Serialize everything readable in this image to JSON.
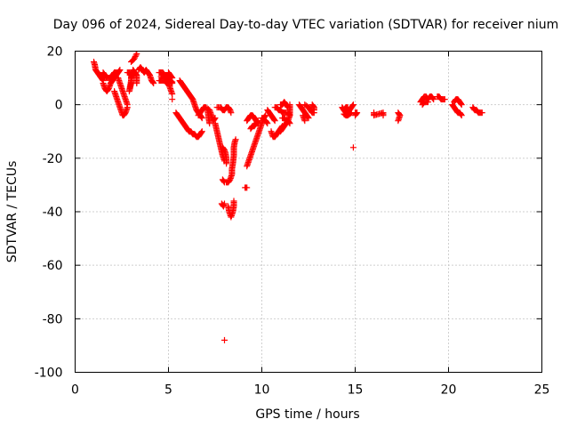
{
  "chart_data": {
    "type": "scatter",
    "title": "Day 096 of 2024, Sidereal Day-to-day VTEC variation (SDTVAR) for receiver nium",
    "xlabel": "GPS time / hours",
    "ylabel": "SDTVAR / TECUs",
    "xlim": [
      0,
      25
    ],
    "ylim": [
      -100,
      20
    ],
    "xticks": [
      0,
      5,
      10,
      15,
      20,
      25
    ],
    "yticks": [
      -100,
      -80,
      -60,
      -40,
      -20,
      0,
      20
    ],
    "xtick_labels": [
      "0",
      "5",
      "10",
      "15",
      "20",
      "25"
    ],
    "ytick_labels": [
      "-100",
      "-80",
      "-60",
      "-40",
      "-20",
      "0",
      "20"
    ],
    "grid": true,
    "marker": "plus",
    "color": "#ff0000",
    "segments": [
      [
        [
          1.0,
          16
        ],
        [
          1.05,
          15
        ],
        [
          1.1,
          13
        ],
        [
          1.2,
          12
        ],
        [
          1.3,
          11
        ],
        [
          1.4,
          10
        ],
        [
          1.5,
          9
        ]
      ],
      [
        [
          1.5,
          12
        ],
        [
          1.6,
          11
        ],
        [
          1.7,
          10
        ],
        [
          1.8,
          10
        ],
        [
          1.9,
          10
        ],
        [
          2.0,
          11
        ],
        [
          2.1,
          12
        ],
        [
          2.2,
          12
        ]
      ],
      [
        [
          1.5,
          8
        ],
        [
          1.6,
          6
        ],
        [
          1.7,
          5
        ],
        [
          1.8,
          6
        ],
        [
          1.9,
          8
        ],
        [
          2.0,
          9
        ],
        [
          2.1,
          10
        ],
        [
          2.2,
          11
        ],
        [
          2.3,
          12
        ],
        [
          2.4,
          13
        ]
      ],
      [
        [
          2.1,
          5
        ],
        [
          2.2,
          3
        ],
        [
          2.3,
          1
        ],
        [
          2.4,
          -1
        ],
        [
          2.5,
          -3
        ],
        [
          2.55,
          -4
        ],
        [
          2.6,
          -4
        ],
        [
          2.7,
          -3
        ],
        [
          2.8,
          -1
        ]
      ],
      [
        [
          2.3,
          10
        ],
        [
          2.4,
          8
        ],
        [
          2.5,
          6
        ],
        [
          2.6,
          4
        ],
        [
          2.7,
          2
        ],
        [
          2.8,
          0
        ]
      ],
      [
        [
          2.8,
          12
        ],
        [
          2.9,
          12
        ],
        [
          3.0,
          11
        ],
        [
          3.0,
          8
        ],
        [
          2.9,
          5
        ],
        [
          3.1,
          13
        ],
        [
          3.2,
          12
        ],
        [
          3.3,
          11
        ],
        [
          3.3,
          8
        ]
      ],
      [
        [
          3.0,
          16
        ],
        [
          3.15,
          17
        ],
        [
          3.3,
          19
        ]
      ],
      [
        [
          3.4,
          13
        ],
        [
          3.5,
          14
        ],
        [
          3.6,
          13
        ],
        [
          3.7,
          12
        ],
        [
          3.8,
          13
        ],
        [
          3.9,
          12
        ],
        [
          4.0,
          11
        ],
        [
          4.1,
          9
        ],
        [
          4.2,
          8
        ]
      ],
      [
        [
          4.5,
          12
        ],
        [
          4.6,
          12
        ],
        [
          4.7,
          12
        ],
        [
          4.8,
          11
        ],
        [
          4.9,
          11
        ],
        [
          5.0,
          10
        ],
        [
          5.1,
          9
        ],
        [
          5.2,
          8
        ]
      ],
      [
        [
          4.5,
          9
        ],
        [
          4.6,
          9
        ],
        [
          4.7,
          9
        ],
        [
          4.8,
          9
        ],
        [
          4.9,
          8
        ],
        [
          5.0,
          8
        ],
        [
          5.1,
          6
        ],
        [
          5.2,
          4
        ]
      ],
      [
        [
          4.6,
          10.5
        ],
        [
          4.7,
          10.5
        ],
        [
          4.8,
          10
        ],
        [
          4.9,
          10
        ],
        [
          5.0,
          9.5
        ],
        [
          5.1,
          9
        ],
        [
          5.2,
          8.5
        ]
      ],
      [
        [
          5.0,
          12
        ],
        [
          5.1,
          11
        ],
        [
          5.2,
          10
        ]
      ],
      [
        [
          5.2,
          2
        ]
      ],
      [
        [
          5.4,
          -3
        ],
        [
          5.5,
          -4
        ],
        [
          5.6,
          -5
        ],
        [
          5.7,
          -6
        ],
        [
          5.8,
          -7
        ],
        [
          5.9,
          -8
        ],
        [
          6.0,
          -9
        ],
        [
          6.1,
          -10
        ],
        [
          6.2,
          -10
        ],
        [
          6.3,
          -11
        ],
        [
          6.4,
          -11
        ],
        [
          6.5,
          -12
        ],
        [
          6.6,
          -12
        ],
        [
          6.7,
          -11
        ],
        [
          6.8,
          -10
        ]
      ],
      [
        [
          5.6,
          9
        ],
        [
          5.7,
          8
        ],
        [
          5.8,
          7
        ],
        [
          5.9,
          6
        ],
        [
          6.0,
          5
        ],
        [
          6.1,
          4
        ],
        [
          6.2,
          3
        ],
        [
          6.3,
          2
        ],
        [
          6.4,
          0
        ],
        [
          6.5,
          -2
        ],
        [
          6.6,
          -3
        ],
        [
          6.7,
          -4
        ],
        [
          6.8,
          -5
        ]
      ],
      [
        [
          6.6,
          -4
        ],
        [
          6.8,
          -2
        ],
        [
          6.9,
          -1
        ],
        [
          7.0,
          -1
        ],
        [
          7.2,
          -2
        ],
        [
          7.3,
          -4
        ],
        [
          7.4,
          -6
        ],
        [
          7.5,
          -5
        ]
      ],
      [
        [
          7.1,
          -2
        ],
        [
          7.15,
          -5
        ],
        [
          7.2,
          -7
        ]
      ],
      [
        [
          7.5,
          -7
        ],
        [
          7.6,
          -10
        ],
        [
          7.7,
          -13
        ],
        [
          7.8,
          -16
        ],
        [
          7.9,
          -19
        ],
        [
          8.0,
          -21
        ]
      ],
      [
        [
          7.6,
          -1
        ],
        [
          7.8,
          -1
        ],
        [
          7.9,
          -2
        ],
        [
          8.0,
          -2
        ]
      ],
      [
        [
          8.0,
          -2
        ],
        [
          8.1,
          -1
        ],
        [
          8.2,
          -1
        ],
        [
          8.3,
          -2
        ],
        [
          8.35,
          -3
        ]
      ],
      [
        [
          7.9,
          -16
        ],
        [
          8.0,
          -17
        ],
        [
          8.05,
          -18
        ],
        [
          8.1,
          -20
        ],
        [
          8.1,
          -22
        ]
      ],
      [
        [
          8.1,
          -29
        ],
        [
          8.2,
          -29
        ],
        [
          8.3,
          -28
        ],
        [
          8.4,
          -26
        ],
        [
          8.4,
          -24
        ],
        [
          8.45,
          -22
        ],
        [
          8.5,
          -19
        ],
        [
          8.5,
          -16
        ],
        [
          8.55,
          -14
        ],
        [
          8.6,
          -13
        ]
      ],
      [
        [
          7.9,
          -28
        ],
        [
          8.0,
          -29
        ]
      ],
      [
        [
          7.85,
          -37
        ],
        [
          7.95,
          -38
        ],
        [
          8.0,
          -37
        ]
      ],
      [
        [
          8.2,
          -38
        ],
        [
          8.25,
          -40
        ],
        [
          8.3,
          -41
        ],
        [
          8.35,
          -42
        ],
        [
          8.4,
          -41
        ],
        [
          8.45,
          -40
        ],
        [
          8.5,
          -38
        ],
        [
          8.5,
          -36
        ]
      ],
      [
        [
          8.0,
          -88
        ]
      ],
      [
        [
          9.1,
          -31
        ],
        [
          9.2,
          -31
        ]
      ],
      [
        [
          9.2,
          -6
        ],
        [
          9.3,
          -5
        ],
        [
          9.4,
          -4
        ],
        [
          9.5,
          -4
        ],
        [
          9.6,
          -5
        ],
        [
          9.7,
          -6
        ],
        [
          9.8,
          -7
        ]
      ],
      [
        [
          9.2,
          -23
        ],
        [
          9.3,
          -21
        ],
        [
          9.4,
          -19
        ],
        [
          9.5,
          -17
        ],
        [
          9.6,
          -15
        ],
        [
          9.7,
          -13
        ],
        [
          9.8,
          -11
        ],
        [
          9.9,
          -9
        ],
        [
          10.0,
          -7
        ],
        [
          10.1,
          -5
        ],
        [
          10.2,
          -4
        ]
      ],
      [
        [
          9.4,
          -9
        ],
        [
          9.5,
          -8
        ],
        [
          9.6,
          -8
        ],
        [
          9.7,
          -7
        ],
        [
          9.8,
          -6
        ]
      ],
      [
        [
          10.0,
          -5
        ],
        [
          10.2,
          -6
        ],
        [
          10.3,
          -7
        ]
      ],
      [
        [
          10.3,
          -2
        ],
        [
          10.4,
          -3
        ],
        [
          10.5,
          -4
        ],
        [
          10.6,
          -5
        ],
        [
          10.7,
          -6
        ]
      ],
      [
        [
          10.5,
          -10
        ],
        [
          10.6,
          -12
        ],
        [
          10.7,
          -12
        ],
        [
          10.8,
          -11
        ],
        [
          10.9,
          -10
        ],
        [
          11.0,
          -9
        ],
        [
          11.1,
          -8
        ]
      ],
      [
        [
          10.7,
          -1
        ],
        [
          10.8,
          -1
        ],
        [
          10.9,
          -2
        ],
        [
          11.0,
          -2
        ],
        [
          11.1,
          -3
        ],
        [
          11.2,
          -3
        ],
        [
          11.3,
          -3
        ]
      ],
      [
        [
          11.0,
          0
        ],
        [
          11.1,
          0
        ],
        [
          11.2,
          1
        ],
        [
          11.3,
          0
        ],
        [
          11.4,
          -1
        ]
      ],
      [
        [
          11.1,
          -5
        ],
        [
          11.2,
          -5
        ],
        [
          11.3,
          -6
        ],
        [
          11.4,
          -6
        ],
        [
          11.5,
          -7
        ]
      ],
      [
        [
          11.0,
          -10
        ],
        [
          11.1,
          -9
        ],
        [
          11.2,
          -8
        ],
        [
          11.3,
          -7
        ],
        [
          11.4,
          -6
        ],
        [
          11.5,
          -4
        ],
        [
          11.5,
          -2
        ],
        [
          11.5,
          0
        ]
      ],
      [
        [
          11.4,
          -3
        ],
        [
          11.5,
          -4
        ]
      ],
      [
        [
          12.0,
          0
        ],
        [
          12.1,
          -1
        ],
        [
          12.2,
          -2
        ],
        [
          12.3,
          -3
        ],
        [
          12.4,
          -4
        ],
        [
          12.5,
          -5
        ]
      ],
      [
        [
          12.3,
          0
        ],
        [
          12.5,
          -1
        ],
        [
          12.6,
          -2
        ],
        [
          12.7,
          -3
        ],
        [
          12.8,
          -3
        ]
      ],
      [
        [
          12.2,
          -4
        ],
        [
          12.3,
          -6
        ]
      ],
      [
        [
          12.7,
          0
        ],
        [
          12.8,
          -1
        ],
        [
          12.8,
          -2
        ]
      ],
      [
        [
          14.3,
          -1
        ],
        [
          14.4,
          -2
        ],
        [
          14.5,
          -3
        ],
        [
          14.6,
          -3
        ],
        [
          14.7,
          -2
        ],
        [
          14.8,
          -1
        ],
        [
          14.9,
          0
        ]
      ],
      [
        [
          14.4,
          -3.5
        ],
        [
          14.5,
          -4
        ],
        [
          14.6,
          -4
        ],
        [
          14.7,
          -3.5
        ],
        [
          14.8,
          -3
        ]
      ],
      [
        [
          14.4,
          -2
        ],
        [
          14.5,
          -1
        ],
        [
          14.6,
          -1
        ]
      ],
      [
        [
          14.9,
          -16
        ]
      ],
      [
        [
          15.0,
          -3
        ],
        [
          15.1,
          -3
        ],
        [
          15.0,
          -4
        ]
      ],
      [
        [
          16.0,
          -3
        ],
        [
          16.0,
          -4
        ],
        [
          16.5,
          -3
        ],
        [
          16.5,
          -4
        ]
      ],
      [
        [
          17.3,
          -3
        ],
        [
          17.4,
          -4
        ],
        [
          17.3,
          -6
        ]
      ],
      [
        [
          18.5,
          1
        ],
        [
          18.6,
          2
        ],
        [
          18.7,
          3
        ],
        [
          18.8,
          3
        ],
        [
          18.9,
          2
        ],
        [
          19.0,
          3
        ],
        [
          19.1,
          3
        ],
        [
          19.2,
          2
        ]
      ],
      [
        [
          18.6,
          0
        ],
        [
          18.7,
          1
        ],
        [
          18.8,
          1
        ],
        [
          18.9,
          1
        ]
      ],
      [
        [
          19.4,
          3
        ],
        [
          19.5,
          3
        ],
        [
          19.6,
          2
        ],
        [
          19.7,
          2
        ],
        [
          19.8,
          2
        ]
      ],
      [
        [
          20.2,
          0
        ],
        [
          20.3,
          -1
        ],
        [
          20.4,
          -2
        ],
        [
          20.5,
          -3
        ],
        [
          20.6,
          -3
        ],
        [
          20.7,
          -4
        ]
      ],
      [
        [
          20.3,
          1
        ],
        [
          20.4,
          2
        ],
        [
          20.5,
          2
        ],
        [
          20.6,
          1
        ],
        [
          20.7,
          0
        ]
      ],
      [
        [
          21.3,
          -1
        ],
        [
          21.4,
          -2
        ],
        [
          21.5,
          -2
        ],
        [
          21.6,
          -3
        ],
        [
          21.7,
          -3
        ],
        [
          21.8,
          -3
        ]
      ]
    ]
  }
}
